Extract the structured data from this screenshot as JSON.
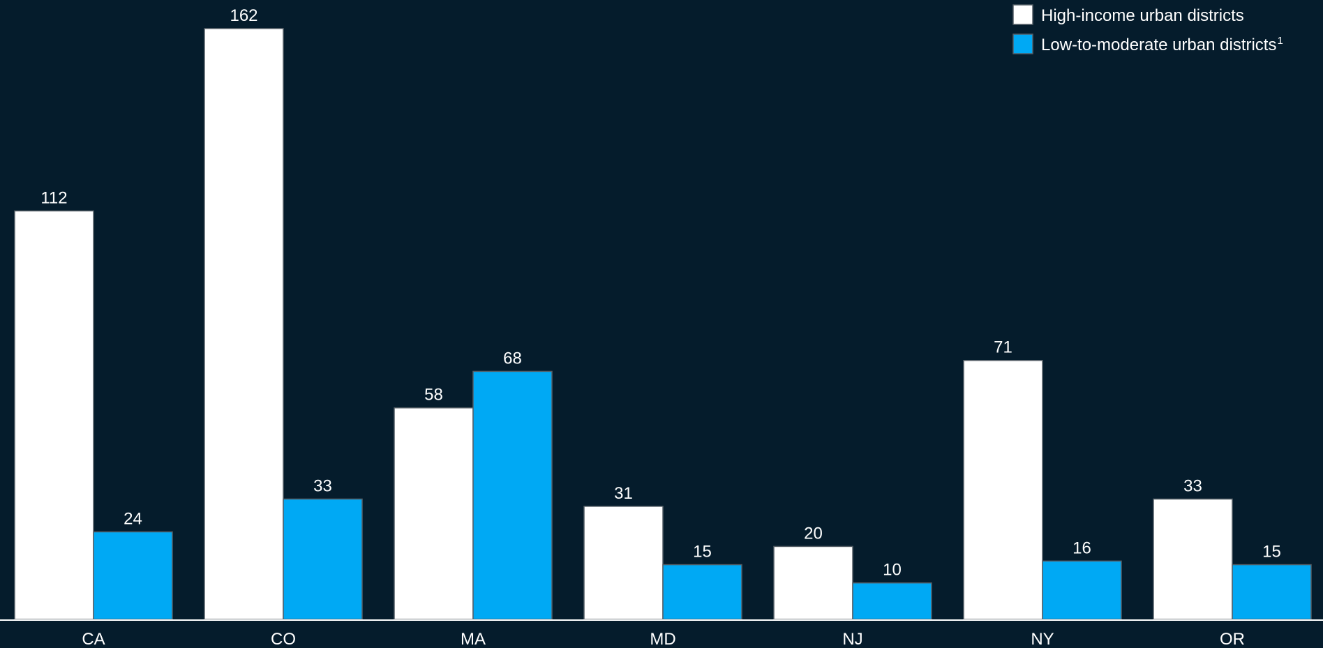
{
  "chart_data": {
    "type": "bar",
    "categories": [
      "CA",
      "CO",
      "MA",
      "MD",
      "NJ",
      "NY",
      "OR"
    ],
    "series": [
      {
        "name": "High-income urban districts",
        "values": [
          112,
          162,
          58,
          31,
          20,
          71,
          33
        ],
        "color": "#ffffff"
      },
      {
        "name": "Low-to-moderate urban districts",
        "name_superscript": "1",
        "values": [
          24,
          33,
          68,
          15,
          10,
          16,
          15
        ],
        "color": "#00a9f4"
      }
    ],
    "title": "",
    "xlabel": "",
    "ylabel": "",
    "ylim": [
      0,
      166
    ],
    "grid": false,
    "legend_position": "top-right",
    "background": "#051c2c",
    "bar_outline": "#555e66",
    "axis_color": "#ffffff"
  }
}
